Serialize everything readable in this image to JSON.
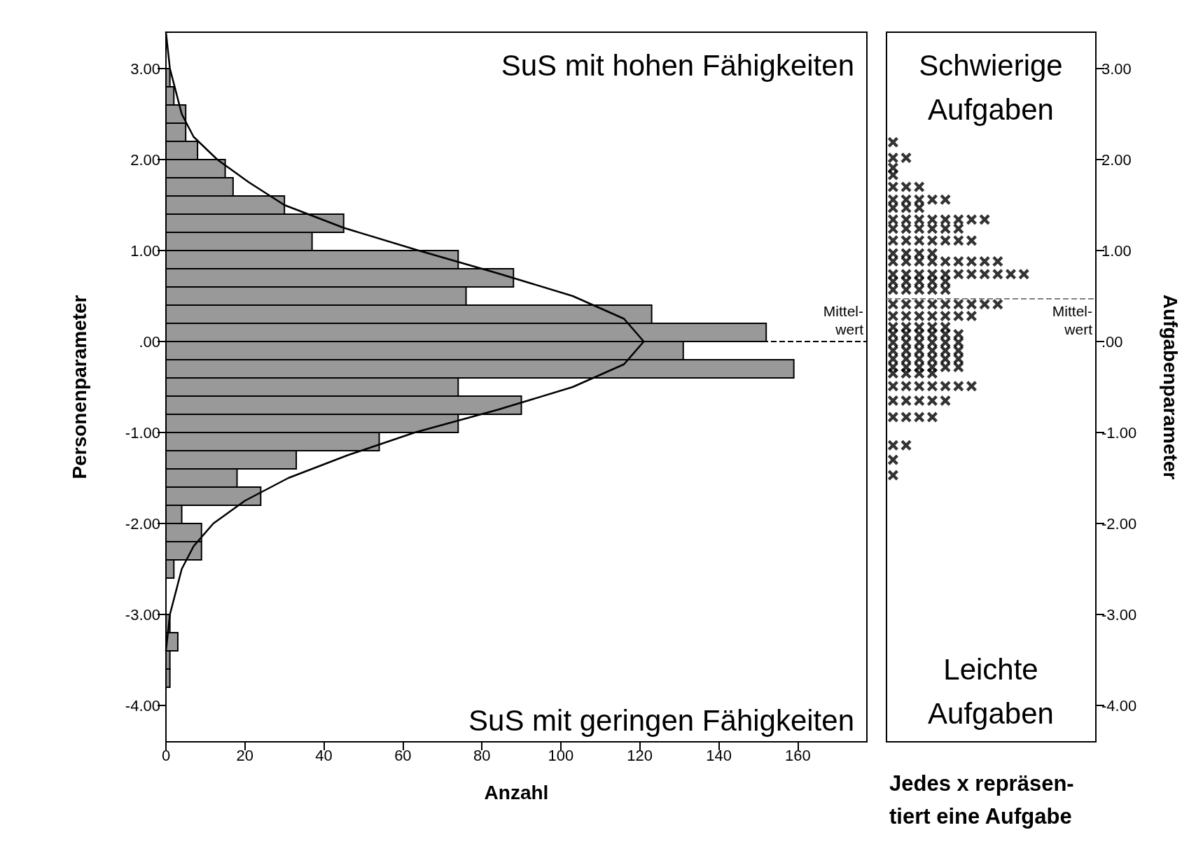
{
  "chart_data": [
    {
      "type": "histogram",
      "orientation": "horizontal",
      "xlabel": "Anzahl",
      "ylabel": "Personenparameter",
      "annotations": [
        "SuS mit hohen Fähigkeiten",
        "SuS mit geringen Fähigkeiten"
      ],
      "bins": [
        -3.8,
        -3.6,
        -3.4,
        -3.2,
        -3.0,
        -2.8,
        -2.6,
        -2.4,
        -2.2,
        -2.0,
        -1.8,
        -1.6,
        -1.4,
        -1.2,
        -1.0,
        -0.8,
        -0.6,
        -0.4,
        -0.2,
        0,
        0.2,
        0.4,
        0.6,
        0.8,
        1.0,
        1.2,
        1.4,
        1.6,
        1.8,
        2.0,
        2.2,
        2.4,
        2.6,
        2.8,
        3.0
      ],
      "series": [
        {
          "type": "histogram",
          "color": "#999999",
          "values": [
            1,
            1,
            3,
            1,
            0,
            0,
            2,
            9,
            9,
            4,
            24,
            18,
            33,
            54,
            74,
            90,
            74,
            159,
            131,
            152,
            123,
            76,
            88,
            74,
            37,
            45,
            30,
            17,
            15,
            8,
            5,
            5,
            2,
            1
          ]
        },
        {
          "type": "line",
          "color": "#000000",
          "x": [
            -3.4,
            -3.0,
            -2.5,
            -2.25,
            -2.0,
            -1.75,
            -1.5,
            -1.25,
            -1.0,
            -0.75,
            -0.5,
            -0.25,
            0,
            0.25,
            0.5,
            0.75,
            1.0,
            1.25,
            1.5,
            1.75,
            2.0,
            2.25,
            2.5,
            3.0,
            3.4
          ],
          "values": [
            0,
            1,
            4,
            7,
            12,
            20,
            31,
            46,
            63,
            84,
            103,
            116,
            121,
            116,
            103,
            84,
            64,
            45,
            30,
            21,
            13,
            7,
            4,
            1,
            0
          ]
        }
      ],
      "xlim": [
        0,
        177.5
      ],
      "xticks": [
        0,
        20,
        40,
        60,
        80,
        100,
        120,
        140,
        160
      ],
      "ylim": [
        -4.4,
        3.4
      ],
      "yticks": [
        {
          "value": -4,
          "label": "-4.00"
        },
        {
          "value": -3,
          "label": "-3.00"
        },
        {
          "value": -2,
          "label": "-2.00"
        },
        {
          "value": -1,
          "label": "-1.00"
        },
        {
          "value": 0,
          "label": ".00"
        },
        {
          "value": 1,
          "label": "1.00"
        },
        {
          "value": 2,
          "label": "2.00"
        },
        {
          "value": 3,
          "label": "3.00"
        }
      ],
      "ref_lines": [
        {
          "axis": "y",
          "value": 0,
          "label": "Mittel-\nwert",
          "color": "#000000",
          "line_style": "dashed"
        }
      ],
      "line_style": "solid",
      "marker": "none",
      "grid": false
    },
    {
      "type": "scatter",
      "marker": "cross",
      "color": "#000000",
      "ylabel": "Aufgabenparameter",
      "tick_labels": "y",
      "annotations": [
        "Schwierige\nAufgaben",
        "Leichte\nAufgaben",
        "Jedes x repräsen-\ntiert eine Aufgabe"
      ],
      "categories": [
        null,
        null,
        null,
        null,
        null,
        null,
        null,
        null,
        null,
        null,
        null,
        null,
        null,
        null,
        null,
        null
      ],
      "series": [
        {
          "values": [
            2.19,
            null,
            null,
            null,
            null,
            null,
            null,
            null,
            null,
            null,
            null,
            null,
            null,
            null,
            null,
            null
          ]
        },
        {
          "values": [
            2.02,
            2.02,
            null,
            null,
            null,
            null,
            null,
            null,
            null,
            null,
            null,
            null,
            null,
            null,
            null,
            null
          ]
        },
        {
          "values": [
            1.91,
            null,
            null,
            null,
            null,
            null,
            null,
            null,
            null,
            null,
            null,
            null,
            null,
            null,
            null,
            null
          ]
        },
        {
          "values": [
            1.83,
            null,
            null,
            null,
            null,
            null,
            null,
            null,
            null,
            null,
            null,
            null,
            null,
            null,
            null,
            null
          ]
        },
        {
          "values": [
            1.7,
            1.7,
            1.7,
            null,
            null,
            null,
            null,
            null,
            null,
            null,
            null,
            null,
            null,
            null,
            null,
            null
          ]
        },
        {
          "values": [
            1.56,
            1.56,
            1.56,
            1.56,
            1.56,
            null,
            null,
            null,
            null,
            null,
            null,
            null,
            null,
            null,
            null,
            null
          ]
        },
        {
          "values": [
            1.47,
            1.47,
            1.47,
            null,
            null,
            null,
            null,
            null,
            null,
            null,
            null,
            null,
            null,
            null,
            null,
            null
          ]
        },
        {
          "values": [
            1.34,
            1.34,
            1.34,
            1.34,
            1.34,
            1.34,
            1.34,
            1.34,
            null,
            null,
            null,
            null,
            null,
            null,
            null,
            null
          ]
        },
        {
          "values": [
            1.24,
            1.24,
            1.24,
            1.24,
            1.24,
            1.24,
            null,
            null,
            null,
            null,
            null,
            null,
            null,
            null,
            null,
            null
          ]
        },
        {
          "values": [
            1.11,
            1.11,
            1.11,
            1.11,
            1.11,
            1.11,
            1.11,
            null,
            null,
            null,
            null,
            null,
            null,
            null,
            null,
            null
          ]
        },
        {
          "values": [
            0.97,
            0.97,
            0.97,
            0.97,
            null,
            null,
            null,
            null,
            null,
            null,
            null,
            null,
            null,
            null,
            null,
            null
          ]
        },
        {
          "values": [
            0.88,
            0.88,
            0.88,
            0.88,
            0.88,
            0.88,
            0.88,
            0.88,
            0.88,
            null,
            null,
            null,
            null,
            null,
            null,
            null
          ]
        },
        {
          "values": [
            0.74,
            0.74,
            0.74,
            0.74,
            0.74,
            0.74,
            0.74,
            0.74,
            0.74,
            0.74,
            0.74,
            null,
            null,
            null,
            null,
            null
          ]
        },
        {
          "values": [
            0.66,
            0.66,
            0.66,
            0.66,
            0.66,
            null,
            null,
            null,
            null,
            null,
            null,
            null,
            null,
            null,
            null,
            null
          ]
        },
        {
          "values": [
            0.57,
            0.57,
            0.57,
            0.57,
            0.57,
            null,
            null,
            null,
            null,
            null,
            null,
            null,
            null,
            null,
            null,
            null
          ]
        },
        {
          "values": [
            0.41,
            0.41,
            0.41,
            0.41,
            0.41,
            0.41,
            0.41,
            0.41,
            0.41,
            null,
            null,
            null,
            null,
            null,
            null,
            null
          ]
        },
        {
          "values": [
            0.28,
            0.28,
            0.28,
            0.28,
            0.28,
            0.28,
            0.28,
            null,
            null,
            null,
            null,
            null,
            null,
            null,
            null,
            null
          ]
        },
        {
          "values": [
            0.16,
            0.16,
            0.16,
            0.16,
            0.16,
            null,
            null,
            null,
            null,
            null,
            null,
            null,
            null,
            null,
            null,
            null
          ]
        },
        {
          "values": [
            0.08,
            0.08,
            0.08,
            0.08,
            0.08,
            0.08,
            null,
            null,
            null,
            null,
            null,
            null,
            null,
            null,
            null,
            null
          ]
        },
        {
          "values": [
            -0.01,
            -0.01,
            -0.01,
            -0.01,
            -0.01,
            -0.01,
            null,
            null,
            null,
            null,
            null,
            null,
            null,
            null,
            null,
            null
          ]
        },
        {
          "values": [
            -0.1,
            -0.1,
            -0.1,
            -0.1,
            -0.1,
            -0.1,
            null,
            null,
            null,
            null,
            null,
            null,
            null,
            null,
            null,
            null
          ]
        },
        {
          "values": [
            -0.19,
            -0.19,
            -0.19,
            -0.19,
            -0.19,
            -0.19,
            null,
            null,
            null,
            null,
            null,
            null,
            null,
            null,
            null,
            null
          ]
        },
        {
          "values": [
            -0.28,
            -0.28,
            -0.28,
            -0.28,
            -0.28,
            -0.28,
            null,
            null,
            null,
            null,
            null,
            null,
            null,
            null,
            null,
            null
          ]
        },
        {
          "values": [
            -0.35,
            -0.35,
            -0.35,
            -0.35,
            null,
            null,
            null,
            null,
            null,
            null,
            null,
            null,
            null,
            null,
            null,
            null
          ]
        },
        {
          "values": [
            -0.49,
            -0.49,
            -0.49,
            -0.49,
            -0.49,
            -0.49,
            -0.49,
            null,
            null,
            null,
            null,
            null,
            null,
            null,
            null,
            null
          ]
        },
        {
          "values": [
            -0.65,
            -0.65,
            -0.65,
            -0.65,
            -0.65,
            null,
            null,
            null,
            null,
            null,
            null,
            null,
            null,
            null,
            null,
            null
          ]
        },
        {
          "values": [
            -0.83,
            -0.83,
            -0.83,
            -0.83,
            null,
            null,
            null,
            null,
            null,
            null,
            null,
            null,
            null,
            null,
            null,
            null
          ]
        },
        {
          "values": [
            -1.14,
            -1.14,
            null,
            null,
            null,
            null,
            null,
            null,
            null,
            null,
            null,
            null,
            null,
            null,
            null,
            null
          ]
        },
        {
          "values": [
            -1.3,
            null,
            null,
            null,
            null,
            null,
            null,
            null,
            null,
            null,
            null,
            null,
            null,
            null,
            null,
            null
          ]
        },
        {
          "values": [
            -1.47,
            null,
            null,
            null,
            null,
            null,
            null,
            null,
            null,
            null,
            null,
            null,
            null,
            null,
            null,
            null
          ]
        }
      ],
      "ylim": [
        -4.4,
        3.4
      ],
      "yticks": [
        {
          "value": -4,
          "label": "-4.00"
        },
        {
          "value": -3,
          "label": "-3.00"
        },
        {
          "value": -2,
          "label": "-2.00"
        },
        {
          "value": -1,
          "label": "-1.00"
        },
        {
          "value": 0,
          "label": ".00"
        },
        {
          "value": 1,
          "label": "1.00"
        },
        {
          "value": 2,
          "label": "2.00"
        },
        {
          "value": 3,
          "label": "3.00"
        }
      ],
      "ref_lines": [
        {
          "axis": "y",
          "value": 0.47,
          "label": "Mittel-\nwert",
          "color": "#808080",
          "line_style": "dashed"
        }
      ],
      "grid": false
    }
  ]
}
